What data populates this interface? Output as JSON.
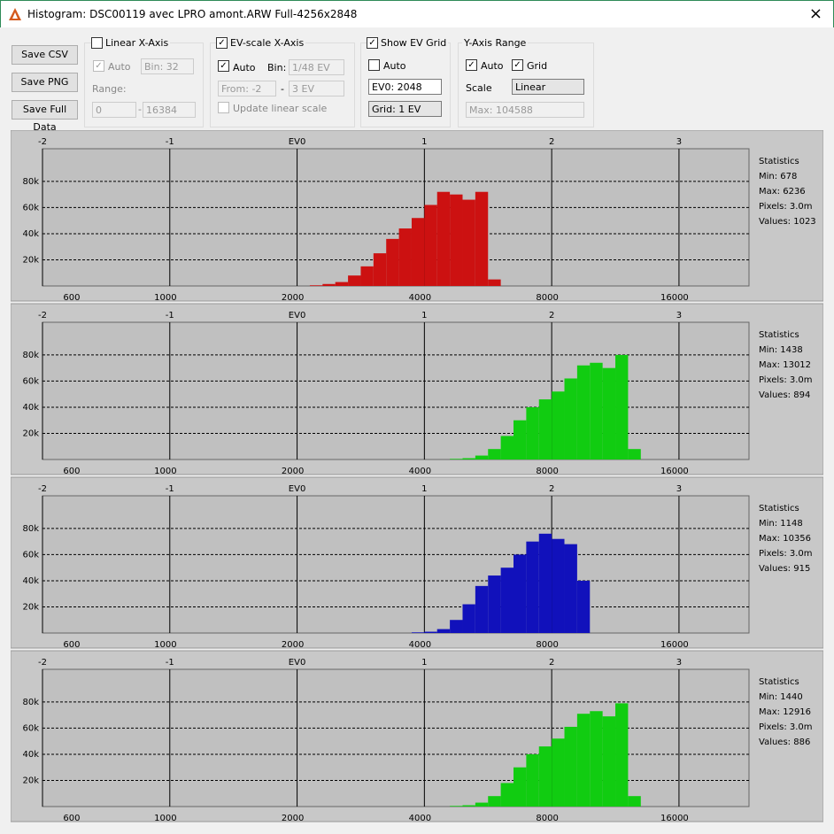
{
  "window": {
    "title": "Histogram: DSC00119 avec LPRO amont.ARW Full-4256x2848"
  },
  "toolbar": {
    "buttons": [
      "Save CSV",
      "Save PNG",
      "Save Full Data"
    ],
    "linear_x_axis": {
      "label": "Linear X-Axis",
      "auto": "Auto",
      "bin": "Bin: 32",
      "range_label": "Range:",
      "from": "0",
      "separator": "-",
      "to": "16384"
    },
    "ev_scale": {
      "label": "EV-scale X-Axis",
      "auto": "Auto",
      "bin_label": "Bin:",
      "bin": "1/48 EV",
      "from": "From: -2",
      "separator": "-",
      "to": "3 EV",
      "update": "Update linear scale"
    },
    "ev_grid": {
      "label": "Show EV Grid",
      "auto": "Auto",
      "ev0": "EV0: 2048",
      "grid": "Grid: 1 EV"
    },
    "y_range": {
      "label": "Y-Axis Range",
      "auto": "Auto",
      "grid": "Grid",
      "scale_label": "Scale",
      "scale": "Linear",
      "max": "Max: 104588"
    }
  },
  "chart_data": [
    {
      "type": "histogram",
      "color": "#cc1111",
      "grid": true,
      "xlim": [
        -2,
        3.55
      ],
      "xticks": [
        -2,
        -1,
        {
          "value": 0,
          "label": "EV0"
        },
        1,
        2,
        3
      ],
      "x2lim": [
        512,
        24000
      ],
      "x2scale": "log",
      "x2ticks": [
        600,
        1000,
        2000,
        4000,
        8000,
        16000
      ],
      "ylim": [
        0,
        105000
      ],
      "yticks": [
        {
          "value": 20000,
          "label": "20k"
        },
        {
          "value": 40000,
          "label": "40k"
        },
        {
          "value": 60000,
          "label": "60k"
        },
        {
          "value": 80000,
          "label": "80k"
        }
      ],
      "bins": [
        0.1,
        0.2,
        0.3,
        0.4,
        0.5,
        0.6,
        0.7,
        0.8,
        0.9,
        1.0,
        1.1,
        1.2,
        1.3,
        1.4,
        1.5,
        1.6
      ],
      "values": [
        500,
        1500,
        3000,
        8000,
        15000,
        25000,
        36000,
        44000,
        52000,
        62000,
        72000,
        70000,
        66000,
        72000,
        5000
      ],
      "stats_title": "Statistics",
      "stats": [
        "Min: 678",
        "Max: 6236",
        "Pixels: 3.0m",
        "Values: 1023"
      ]
    },
    {
      "type": "histogram",
      "color": "#11cc11",
      "grid": true,
      "xlim": [
        -2,
        3.55
      ],
      "xticks": [
        -2,
        -1,
        {
          "value": 0,
          "label": "EV0"
        },
        1,
        2,
        3
      ],
      "x2lim": [
        512,
        24000
      ],
      "x2scale": "log",
      "x2ticks": [
        600,
        1000,
        2000,
        4000,
        8000,
        16000
      ],
      "ylim": [
        0,
        105000
      ],
      "yticks": [
        {
          "value": 20000,
          "label": "20k"
        },
        {
          "value": 40000,
          "label": "40k"
        },
        {
          "value": 60000,
          "label": "60k"
        },
        {
          "value": 80000,
          "label": "80k"
        }
      ],
      "bins": [
        1.2,
        1.3,
        1.4,
        1.5,
        1.6,
        1.7,
        1.8,
        1.9,
        2.0,
        2.1,
        2.2,
        2.3,
        2.4,
        2.5,
        2.6,
        2.7
      ],
      "values": [
        500,
        1000,
        3000,
        8000,
        18000,
        30000,
        40000,
        46000,
        52000,
        62000,
        72000,
        74000,
        70000,
        80000,
        8000
      ],
      "stats_title": "Statistics",
      "stats": [
        "Min: 1438",
        "Max: 13012",
        "Pixels: 3.0m",
        "Values: 894"
      ]
    },
    {
      "type": "histogram",
      "color": "#1111bb",
      "grid": true,
      "xlim": [
        -2,
        3.55
      ],
      "xticks": [
        -2,
        -1,
        {
          "value": 0,
          "label": "EV0"
        },
        1,
        2,
        3
      ],
      "x2lim": [
        512,
        24000
      ],
      "x2scale": "log",
      "x2ticks": [
        600,
        1000,
        2000,
        4000,
        8000,
        16000
      ],
      "ylim": [
        0,
        105000
      ],
      "yticks": [
        {
          "value": 20000,
          "label": "20k"
        },
        {
          "value": 40000,
          "label": "40k"
        },
        {
          "value": 60000,
          "label": "60k"
        },
        {
          "value": 80000,
          "label": "80k"
        }
      ],
      "bins": [
        0.9,
        1.0,
        1.1,
        1.2,
        1.3,
        1.4,
        1.5,
        1.6,
        1.7,
        1.8,
        1.9,
        2.0,
        2.1,
        2.2,
        2.3
      ],
      "values": [
        500,
        1000,
        3000,
        10000,
        22000,
        36000,
        44000,
        50000,
        60000,
        70000,
        76000,
        72000,
        68000,
        40000
      ],
      "stats_title": "Statistics",
      "stats": [
        "Min: 1148",
        "Max: 10356",
        "Pixels: 3.0m",
        "Values: 915"
      ]
    },
    {
      "type": "histogram",
      "color": "#11cc11",
      "grid": true,
      "xlim": [
        -2,
        3.55
      ],
      "xticks": [
        -2,
        -1,
        {
          "value": 0,
          "label": "EV0"
        },
        1,
        2,
        3
      ],
      "x2lim": [
        512,
        24000
      ],
      "x2scale": "log",
      "x2ticks": [
        600,
        1000,
        2000,
        4000,
        8000,
        16000
      ],
      "ylim": [
        0,
        105000
      ],
      "yticks": [
        {
          "value": 20000,
          "label": "20k"
        },
        {
          "value": 40000,
          "label": "40k"
        },
        {
          "value": 60000,
          "label": "60k"
        },
        {
          "value": 80000,
          "label": "80k"
        }
      ],
      "bins": [
        1.2,
        1.3,
        1.4,
        1.5,
        1.6,
        1.7,
        1.8,
        1.9,
        2.0,
        2.1,
        2.2,
        2.3,
        2.4,
        2.5,
        2.6,
        2.7
      ],
      "values": [
        500,
        1000,
        3000,
        8000,
        18000,
        30000,
        40000,
        46000,
        52000,
        61000,
        71000,
        73000,
        69000,
        79000,
        8000
      ],
      "stats_title": "Statistics",
      "stats": [
        "Min: 1440",
        "Max: 12916",
        "Pixels: 3.0m",
        "Values: 886"
      ]
    }
  ]
}
